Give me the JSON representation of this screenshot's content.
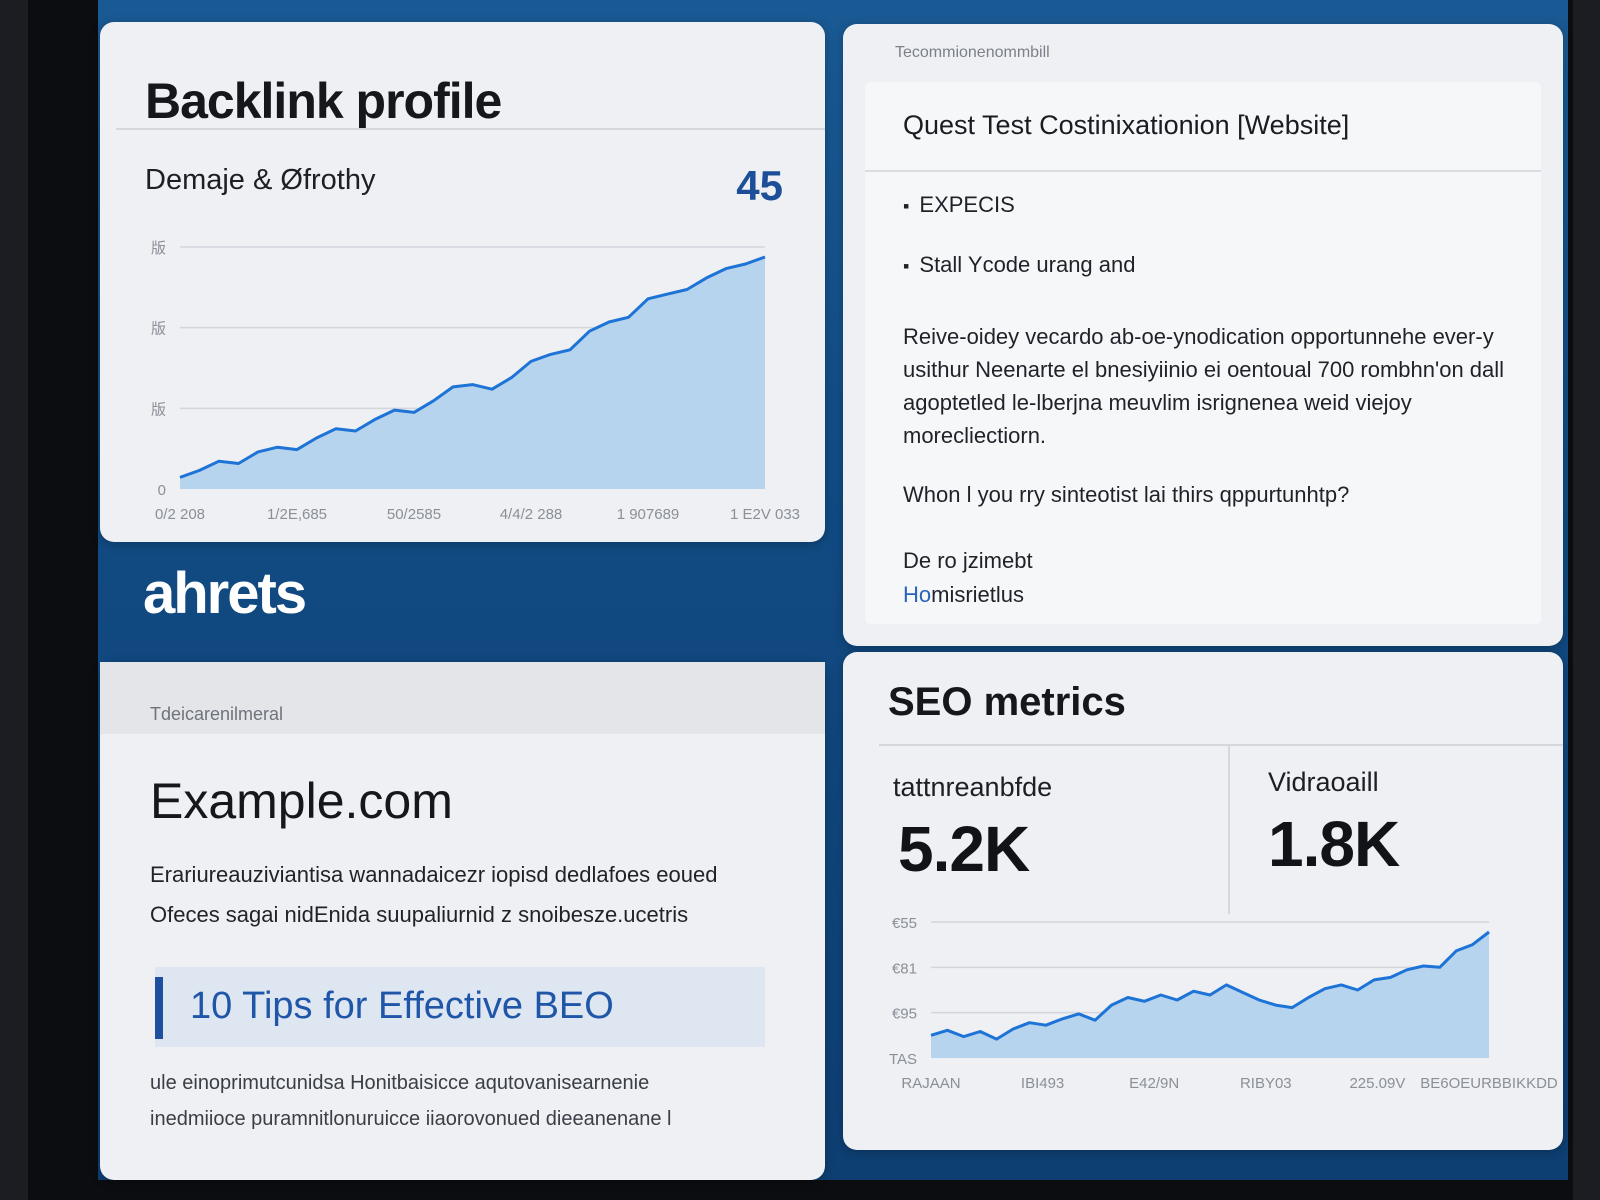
{
  "backlink": {
    "title": "Backlink profile",
    "metric_label": "Demaje & Øfrothy",
    "metric_value": "45",
    "y_ticks": [
      "版",
      "版",
      "版",
      "0"
    ],
    "x_ticks": [
      "0/2 208",
      "1/2E,685",
      "50/2585",
      "4/4/2 288",
      "1 907689",
      "1 E2V 033"
    ],
    "series": [
      0.05,
      0.08,
      0.12,
      0.11,
      0.16,
      0.18,
      0.17,
      0.22,
      0.26,
      0.25,
      0.3,
      0.34,
      0.33,
      0.38,
      0.44,
      0.45,
      0.43,
      0.48,
      0.55,
      0.58,
      0.6,
      0.68,
      0.72,
      0.74,
      0.82,
      0.84,
      0.86,
      0.91,
      0.95,
      0.97,
      1.0
    ]
  },
  "email": {
    "tag": "Tecommionenommbill",
    "subject": "Quest Test Costinixationion [Website]",
    "bullets": [
      "EXPECIS",
      "Stall Ycode urang and"
    ],
    "paragraph": "Reive-oidey vecardo ab-oe-ynodication opportunnehe ever-y usithur Neenarte el bnesiyiinio ei oentoual 700 rombhn'on dall agoptetled le-lberjna meuvlim isrignenea weid viejoy morecliectiorn.",
    "question": "Whon l you rry sinteotist lai thirs qppurtunhtp?",
    "sign1": "De ro jzimebt",
    "sign2_accent": "Ho",
    "sign2_rest": "misrietlus"
  },
  "brand": "ahrets",
  "article": {
    "tag": "Tdeicarenilmeral",
    "domain": "Example.com",
    "desc1": "Erariureauziviantisa wannadaicezr iopisd dedlafoes eoued",
    "desc2": "Ofeces sagai nidEnida suupaliurnid z snoibesze.ucetris",
    "headline": "10 Tips for Effective BEO",
    "foot1": "ule einoprimutcunidsa Honitbaisicce aqutovanisearnenie",
    "foot2": "inedmiioce puramnitlonuruicce iiaorovonued dieeanenane l"
  },
  "seo": {
    "title": "SEO metrics",
    "metric1_label": "tattnreanbfde",
    "metric1_value": "5.2K",
    "metric2_label": "Vidraoaill",
    "metric2_value": "1.8K",
    "y_ticks": [
      "€55",
      "€81",
      "€95",
      "TAS"
    ],
    "x_ticks": [
      "RAJAAN",
      "IBI493",
      "E42/9N",
      "RIBY03",
      "225.09V",
      "BE6OEURBBIKKDD"
    ],
    "series": [
      0.18,
      0.22,
      0.17,
      0.21,
      0.15,
      0.23,
      0.28,
      0.26,
      0.31,
      0.35,
      0.3,
      0.42,
      0.48,
      0.45,
      0.5,
      0.46,
      0.53,
      0.5,
      0.58,
      0.52,
      0.46,
      0.42,
      0.4,
      0.48,
      0.55,
      0.58,
      0.54,
      0.62,
      0.64,
      0.7,
      0.73,
      0.72,
      0.85,
      0.9,
      1.0
    ]
  }
}
